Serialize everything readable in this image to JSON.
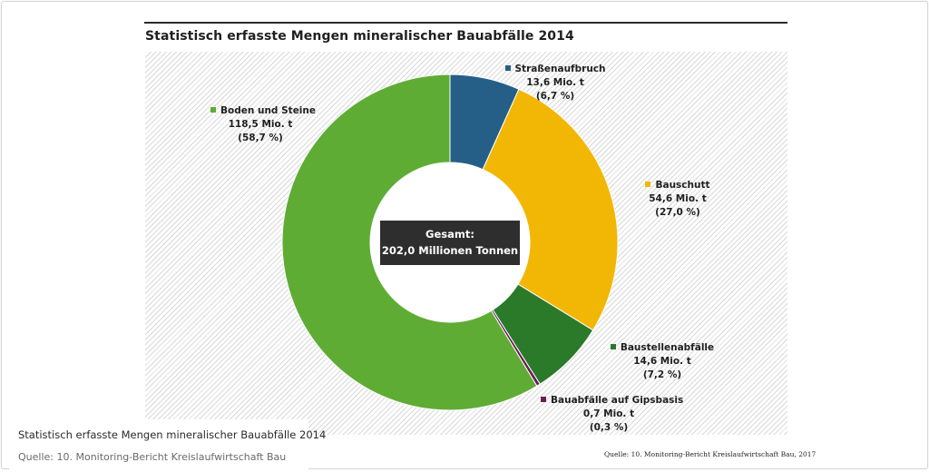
{
  "title": "Statistisch erfasste Mengen mineralischer Bauabfälle 2014",
  "total": {
    "label": "Gesamt:",
    "value": "202,0 Millionen Tonnen"
  },
  "source_note": "Quelle: 10. Monitoring-Bericht Kreislaufwirtschaft Bau, 2017",
  "caption": {
    "title": "Statistisch erfasste Mengen mineralischer Bauabfälle 2014",
    "source": "Quelle: 10. Monitoring-Bericht Kreislaufwirtschaft Bau"
  },
  "chart_data": {
    "type": "pie",
    "title": "Statistisch erfasste Mengen mineralischer Bauabfälle 2014",
    "unit": "Mio. t",
    "total": 202.0,
    "slices": [
      {
        "name": "Straßenaufbruch",
        "value": 13.6,
        "value_label": "13,6 Mio. t",
        "percent_label": "(6,7 %)",
        "color": "#255f87"
      },
      {
        "name": "Bauschutt",
        "value": 54.6,
        "value_label": "54,6 Mio. t",
        "percent_label": "(27,0 %)",
        "color": "#f2b705"
      },
      {
        "name": "Baustellenabfälle",
        "value": 14.6,
        "value_label": "14,6 Mio. t",
        "percent_label": "(7,2 %)",
        "color": "#2a7a2a"
      },
      {
        "name": "Bauabfälle auf Gipsbasis",
        "value": 0.7,
        "value_label": "0,7 Mio. t",
        "percent_label": "(0,3 %)",
        "color": "#6b1e55"
      },
      {
        "name": "Boden und Steine",
        "value": 118.5,
        "value_label": "118,5 Mio. t",
        "percent_label": "(58,7 %)",
        "color": "#5fac35"
      }
    ]
  }
}
